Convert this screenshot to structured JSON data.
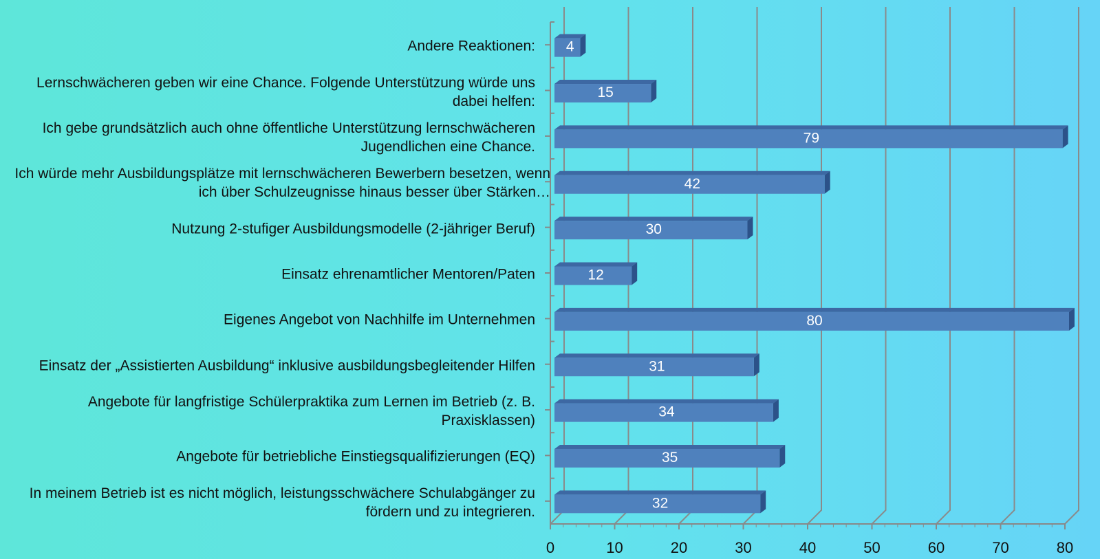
{
  "chart_data": {
    "type": "bar",
    "orientation": "horizontal",
    "categories": [
      "Andere Reaktionen:",
      "Lernschwächeren geben wir eine Chance. Folgende Unterstützung würde uns dabei helfen:",
      "Ich gebe grundsätzlich auch ohne öffentliche Unterstützung lernschwächeren Jugendlichen eine Chance.",
      "Ich würde mehr Ausbildungsplätze mit lernschwächeren Bewerbern besetzen, wenn ich über Schulzeugnisse hinaus besser über Stärken…",
      "Nutzung 2-stufiger Ausbildungsmodelle (2-jähriger Beruf)",
      "Einsatz ehrenamtlicher Mentoren/Paten",
      "Eigenes Angebot von Nachhilfe im Unternehmen",
      "Einsatz der „Assistierten Ausbildung“ inklusive ausbildungsbegleitender Hilfen",
      "Angebote für langfristige Schülerpraktika zum Lernen im Betrieb (z. B. Praxisklassen)",
      "Angebote für betriebliche Einstiegsqualifizierungen (EQ)",
      "In meinem Betrieb ist es nicht möglich, leistungsschwächere Schulabgänger zu fördern und zu integrieren."
    ],
    "values": [
      4,
      15,
      79,
      42,
      30,
      12,
      80,
      31,
      34,
      35,
      32
    ],
    "color": "#4f81bd",
    "xlim": [
      0,
      80
    ],
    "xticks": [
      0,
      10,
      20,
      30,
      40,
      50,
      60,
      70,
      80
    ],
    "grid": true
  }
}
